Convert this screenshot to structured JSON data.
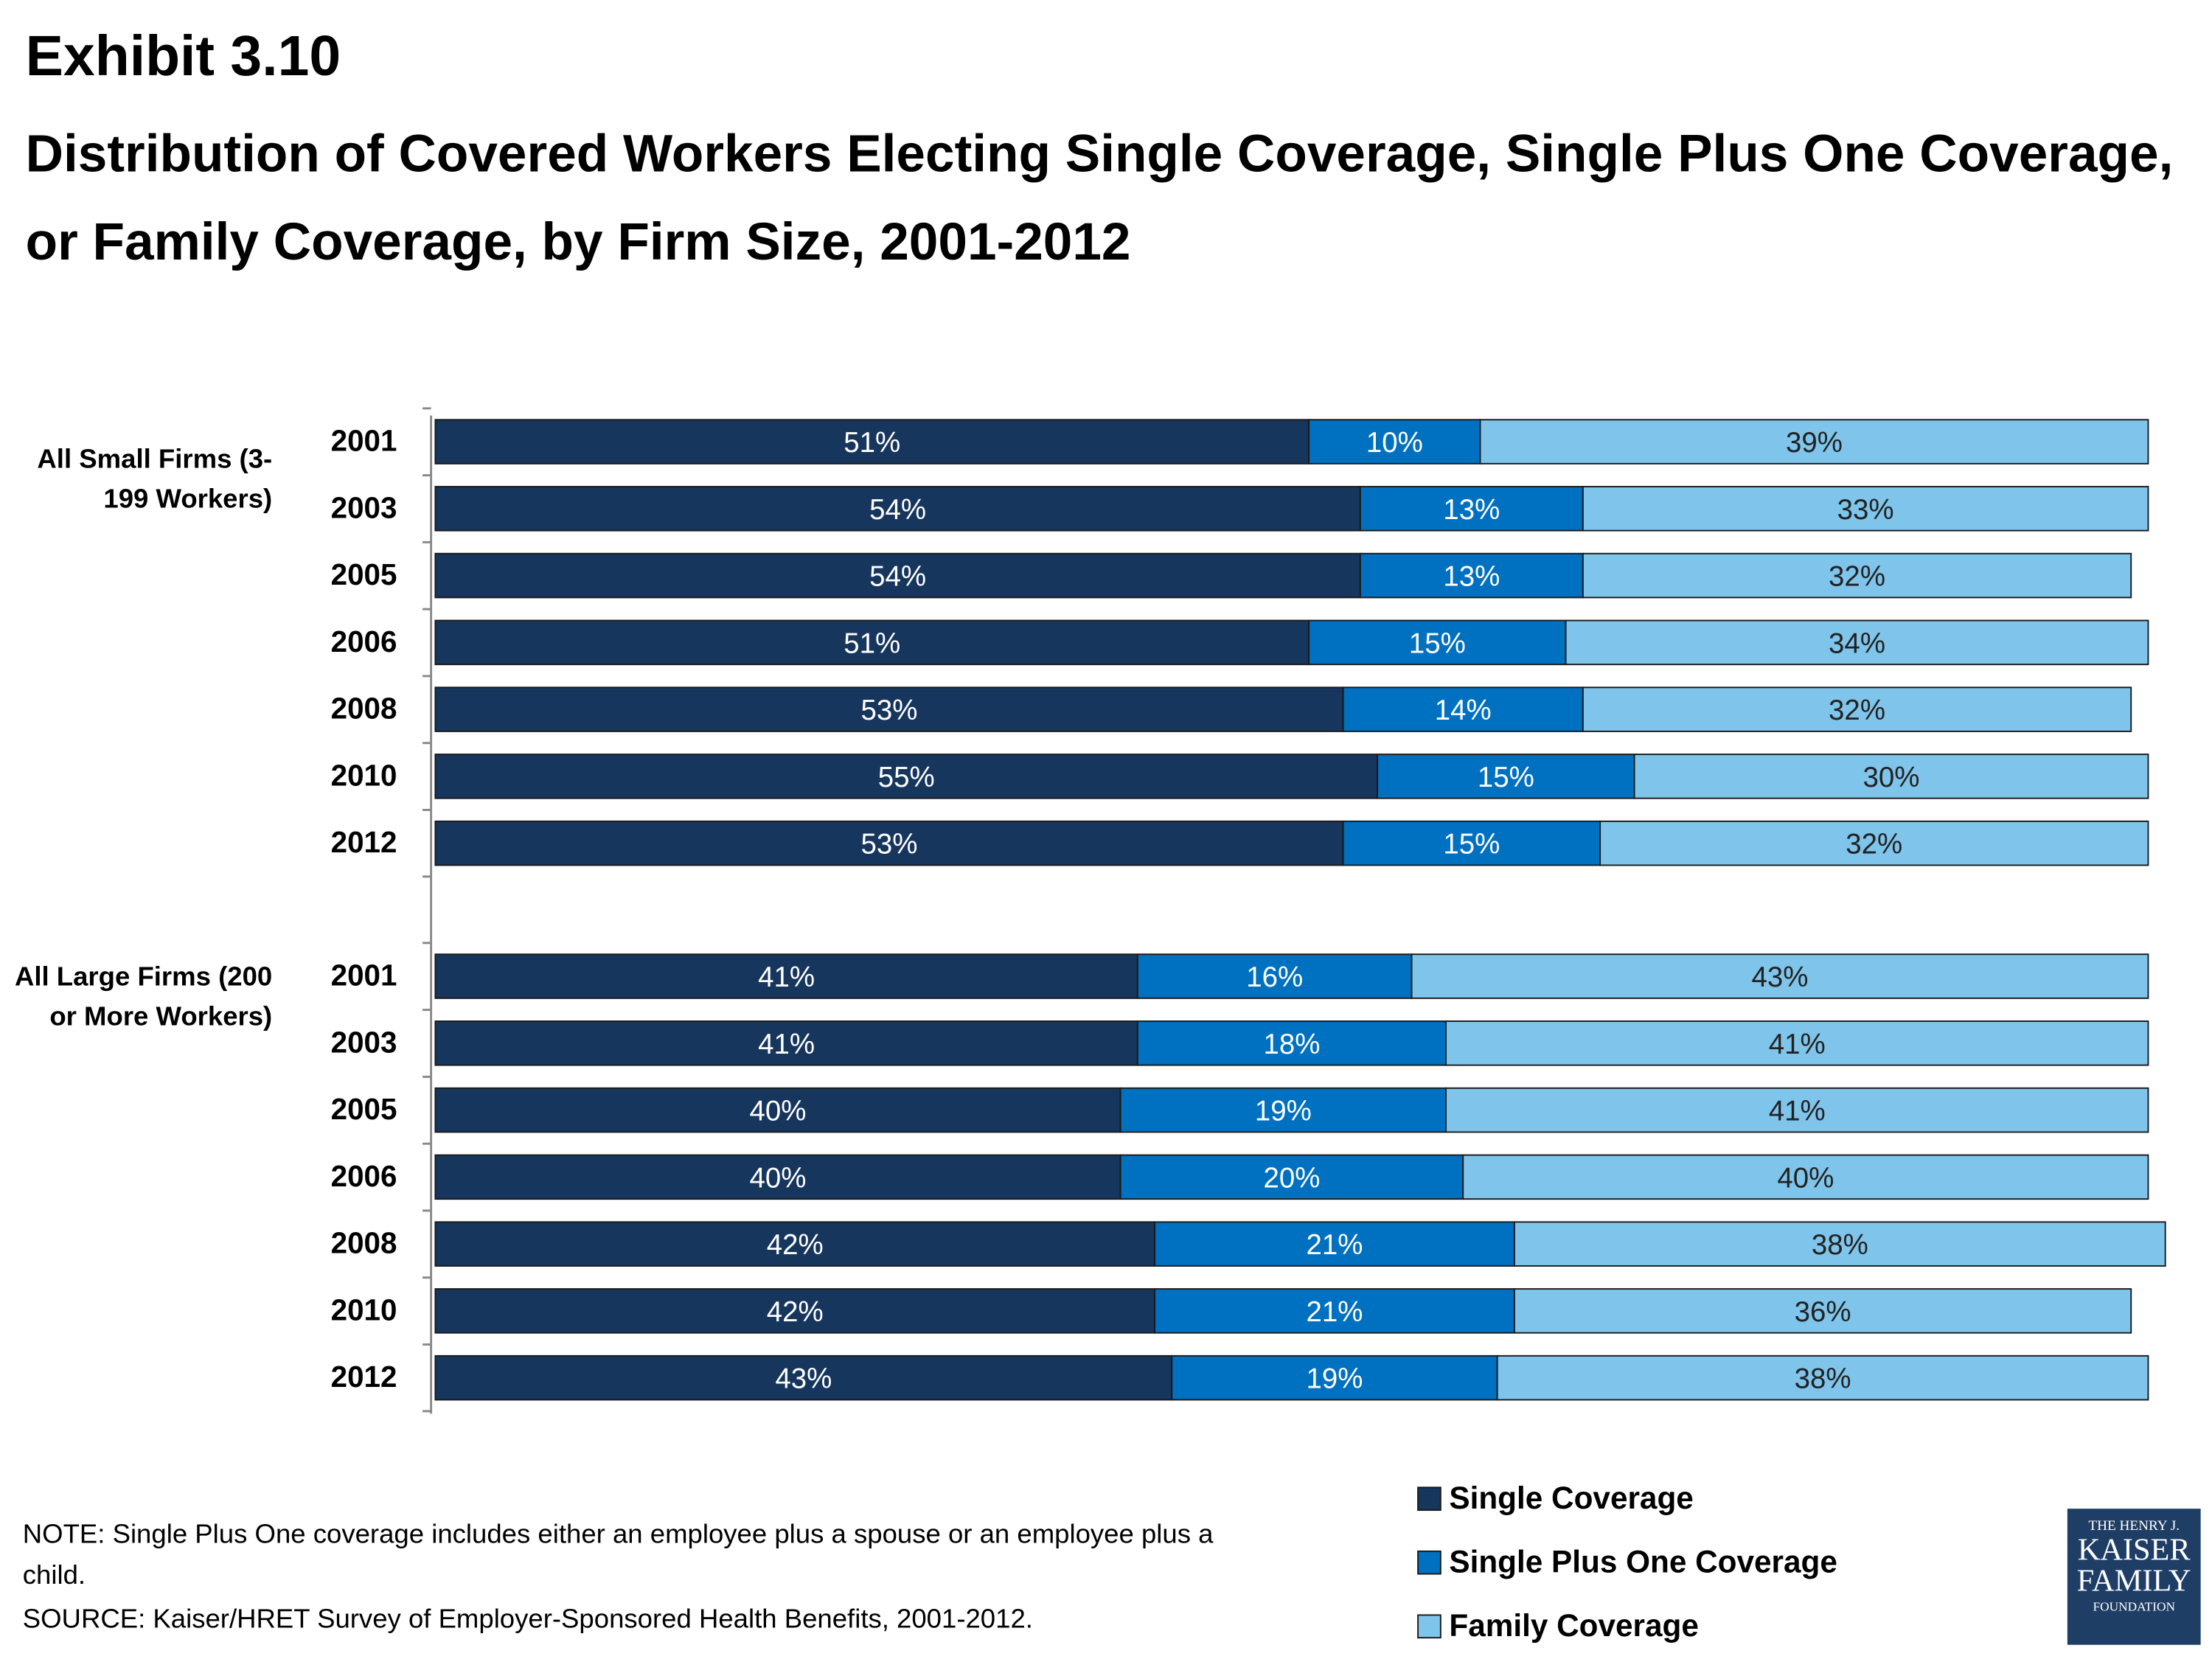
{
  "title": "Exhibit 3.10",
  "subtitle": "Distribution of Covered Workers Electing Single Coverage, Single Plus One Coverage, or Family Coverage, by Firm Size, 2001-2012",
  "note": "NOTE: Single Plus One coverage includes either an employee plus a spouse or an employee plus a child.",
  "source": "SOURCE: Kaiser/HRET Survey of Employer-Sponsored Health Benefits, 2001-2012.",
  "logo": [
    "THE HENRY J.",
    "KAISER",
    "FAMILY",
    "FOUNDATION"
  ],
  "chart_data": [
    {
      "type": "bar",
      "orientation": "horizontal",
      "stacked": true,
      "group_label": "All Small Firms (3-199 Workers)",
      "categories": [
        "2001",
        "2003",
        "2005",
        "2006",
        "2008",
        "2010",
        "2012"
      ],
      "xlim": [
        0,
        100
      ],
      "series": [
        {
          "name": "Single Coverage",
          "color": "#17365d",
          "values": [
            51,
            54,
            54,
            51,
            53,
            55,
            53
          ],
          "value_labels": [
            "51%",
            "54%",
            "54%",
            "51%",
            "53%",
            "55%",
            "53%"
          ]
        },
        {
          "name": "Single Plus One Coverage",
          "color": "#0070c0",
          "values": [
            10,
            13,
            13,
            15,
            14,
            15,
            15
          ],
          "value_labels": [
            "10%",
            "13%",
            "13%",
            "15%",
            "14%",
            "15%",
            "15%"
          ]
        },
        {
          "name": "Family Coverage",
          "color": "#7fc4ea",
          "values": [
            39,
            33,
            32,
            34,
            32,
            30,
            32
          ],
          "value_labels": [
            "39%",
            "33%",
            "32%",
            "34%",
            "32%",
            "30%",
            "32%"
          ]
        }
      ]
    },
    {
      "type": "bar",
      "orientation": "horizontal",
      "stacked": true,
      "group_label": "All Large Firms (200 or More Workers)",
      "categories": [
        "2001",
        "2003",
        "2005",
        "2006",
        "2008",
        "2010",
        "2012"
      ],
      "xlim": [
        0,
        100
      ],
      "series": [
        {
          "name": "Single Coverage",
          "color": "#17365d",
          "values": [
            41,
            41,
            40,
            40,
            42,
            42,
            43
          ],
          "value_labels": [
            "41%",
            "41%",
            "40%",
            "40%",
            "42%",
            "42%",
            "43%"
          ]
        },
        {
          "name": "Single Plus One Coverage",
          "color": "#0070c0",
          "values": [
            16,
            18,
            19,
            20,
            21,
            21,
            19
          ],
          "value_labels": [
            "16%",
            "18%",
            "19%",
            "20%",
            "21%",
            "21%",
            "19%"
          ]
        },
        {
          "name": "Family Coverage",
          "color": "#7fc4ea",
          "values": [
            43,
            41,
            41,
            40,
            38,
            36,
            38
          ],
          "value_labels": [
            "43%",
            "41%",
            "41%",
            "40%",
            "38%",
            "36%",
            "38%"
          ]
        }
      ]
    }
  ]
}
